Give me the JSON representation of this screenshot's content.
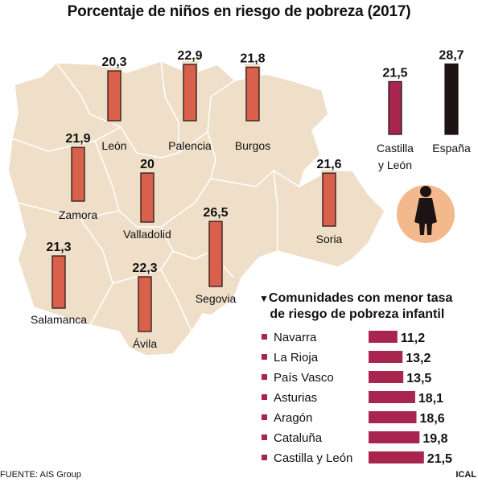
{
  "title": "Porcentaje de niños en riesgo de pobreza (2017)",
  "source": "FUENTE: AIS Group",
  "credit": "ICAL",
  "colors": {
    "province_bar": "#d9604a",
    "castilla_bar": "#a8254f",
    "espana_bar": "#1e1416",
    "ranking_bar": "#a8254f",
    "map_fill": "#efdfc8",
    "circle": "#f3b88c"
  },
  "chart_data": [
    {
      "type": "bar",
      "title": "Porcentaje de niños en riesgo de pobreza (2017)",
      "categories": [
        "León",
        "Palencia",
        "Burgos",
        "Zamora",
        "Valladolid",
        "Soria",
        "Salamanca",
        "Segovia",
        "Ávila",
        "Castilla y León",
        "España"
      ],
      "values": [
        20.3,
        22.9,
        21.8,
        21.9,
        20,
        21.6,
        21.3,
        26.5,
        22.3,
        21.5,
        28.7
      ],
      "value_labels": [
        "20,3",
        "22,9",
        "21,8",
        "21,9",
        "20",
        "21,6",
        "21,3",
        "26,5",
        "22,3",
        "21,5",
        "28,7"
      ],
      "comparison_labels": [
        "Castilla\ny León",
        "España"
      ]
    },
    {
      "type": "bar",
      "title": "Comunidades con menor tasa de riesgo de pobreza infantil",
      "title_lines": [
        "Comunidades con menor tasa",
        "de riesgo de pobreza infantil"
      ],
      "categories": [
        "Navarra",
        "La Rioja",
        "País Vasco",
        "Asturias",
        "Aragón",
        "Cataluña",
        "Castilla y León"
      ],
      "values": [
        11.2,
        13.2,
        13.5,
        18.1,
        18.6,
        19.8,
        21.5
      ],
      "value_labels": [
        "11,2",
        "13,2",
        "13,5",
        "18,1",
        "18,6",
        "19,8",
        "21,5"
      ]
    }
  ]
}
